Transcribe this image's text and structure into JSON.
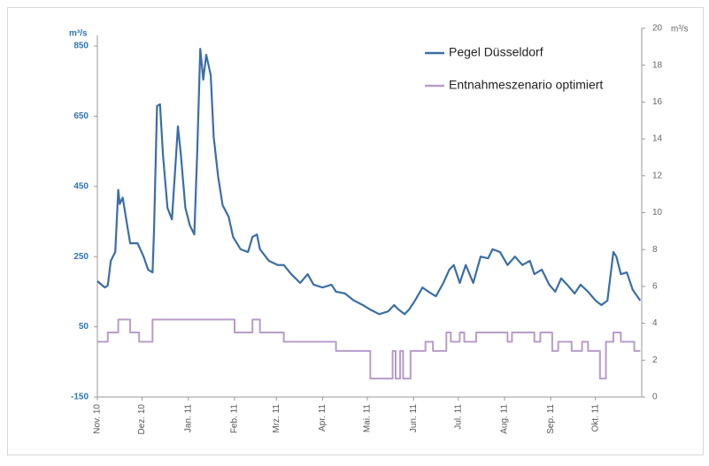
{
  "chart_data": {
    "type": "line",
    "y_label": "m³/s",
    "y2_label": "m³/s",
    "xlim": [
      0,
      365
    ],
    "xticks": [
      {
        "value": 0,
        "label": "Nov. 10"
      },
      {
        "value": 30,
        "label": "Dez. 10"
      },
      {
        "value": 61,
        "label": "Jan. 11"
      },
      {
        "value": 92,
        "label": "Feb. 11"
      },
      {
        "value": 120,
        "label": "Mrz. 11"
      },
      {
        "value": 151,
        "label": "Apr. 11"
      },
      {
        "value": 181,
        "label": "Mai. 11"
      },
      {
        "value": 212,
        "label": "Jun. 11"
      },
      {
        "value": 242,
        "label": "Jul. 11"
      },
      {
        "value": 273,
        "label": "Aug. 11"
      },
      {
        "value": 304,
        "label": "Sep. 11"
      },
      {
        "value": 334,
        "label": "Okt. 11"
      }
    ],
    "ylim": [
      -150,
      850
    ],
    "yticks": [
      -150,
      50,
      250,
      450,
      650,
      850
    ],
    "y2lim": [
      0,
      20
    ],
    "y2ticks": [
      0,
      2,
      4,
      6,
      8,
      10,
      12,
      14,
      16,
      18,
      20
    ],
    "series": [
      {
        "name": "Pegel Düsseldorf",
        "color": "#3a6ea8",
        "x": [
          0,
          5,
          7,
          9,
          12,
          14,
          15,
          17,
          20,
          22,
          27,
          31,
          34,
          37,
          38,
          40,
          42,
          44,
          47,
          50,
          53,
          54,
          56,
          59,
          62,
          65,
          67,
          69,
          71,
          73,
          76,
          78,
          81,
          84,
          88,
          91,
          96,
          101,
          104,
          107,
          109,
          115,
          121,
          125,
          130,
          136,
          141,
          145,
          151,
          157,
          160,
          166,
          172,
          178,
          183,
          189,
          195,
          199,
          202,
          206,
          209,
          213,
          218,
          222,
          227,
          232,
          236,
          239,
          243,
          247,
          252,
          257,
          262,
          265,
          270,
          275,
          280,
          285,
          290,
          293,
          298,
          303,
          307,
          311,
          315,
          320,
          324,
          329,
          334,
          338,
          342,
          346,
          348,
          351,
          355,
          359,
          364
        ],
        "values": [
          180,
          162,
          168,
          238,
          263,
          440,
          400,
          418,
          339,
          288,
          288,
          250,
          213,
          205,
          326,
          679,
          684,
          540,
          389,
          356,
          553,
          621,
          540,
          389,
          339,
          313,
          553,
          842,
          754,
          825,
          767,
          591,
          477,
          396,
          364,
          306,
          271,
          263,
          306,
          313,
          271,
          238,
          226,
          226,
          200,
          175,
          200,
          170,
          162,
          170,
          150,
          145,
          125,
          112,
          99,
          86,
          94,
          112,
          99,
          86,
          99,
          125,
          162,
          150,
          137,
          175,
          213,
          226,
          175,
          226,
          175,
          250,
          245,
          271,
          263,
          226,
          250,
          226,
          238,
          200,
          213,
          170,
          150,
          188,
          170,
          145,
          170,
          150,
          125,
          112,
          125,
          263,
          250,
          200,
          205,
          155,
          125
        ]
      },
      {
        "name": "Entnahmeszenario optimiert",
        "color": "#b89cc9",
        "axis": "y2",
        "step": true,
        "x": [
          0,
          7,
          14,
          22,
          28,
          37,
          92,
          104,
          109,
          125,
          160,
          183,
          198,
          200,
          203,
          205,
          210,
          220,
          225,
          234,
          237,
          243,
          246,
          254,
          275,
          278,
          293,
          297,
          305,
          309,
          318,
          325,
          329,
          337,
          341,
          346,
          351,
          360,
          364
        ],
        "values": [
          3.0,
          3.5,
          4.2,
          3.5,
          3.0,
          4.2,
          3.5,
          4.2,
          3.5,
          3.0,
          2.5,
          1.0,
          2.5,
          1.0,
          2.5,
          1.0,
          2.5,
          3.0,
          2.5,
          3.5,
          3.0,
          3.5,
          3.0,
          3.5,
          3.0,
          3.5,
          3.0,
          3.5,
          2.5,
          3.0,
          2.5,
          3.0,
          2.5,
          1.0,
          3.0,
          3.5,
          3.0,
          2.5,
          2.5
        ]
      }
    ]
  }
}
